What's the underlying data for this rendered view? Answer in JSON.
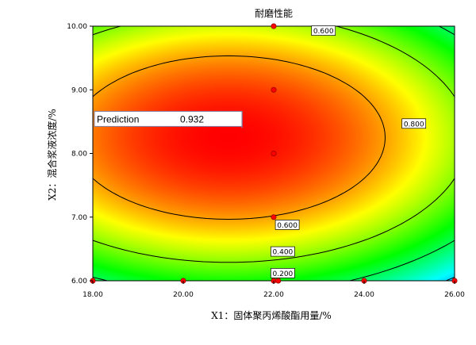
{
  "chart_data": {
    "type": "heatmap",
    "subtype": "contour",
    "title": "耐磨性能",
    "xlabel": "X1：固体聚丙烯酸酯用量/%",
    "ylabel": "X2：混合浆液浓度/%",
    "xlim": [
      18.0,
      26.0
    ],
    "ylim": [
      6.0,
      10.0
    ],
    "xticks": [
      "18.00",
      "20.00",
      "22.00",
      "24.00",
      "26.00"
    ],
    "yticks": [
      "6.00",
      "7.00",
      "8.00",
      "9.00",
      "10.00"
    ],
    "surface": {
      "center": [
        21.0,
        8.25
      ],
      "max": 0.95,
      "ax": 0.0125,
      "ay": 0.091
    },
    "contours": [
      {
        "level": 0.2,
        "label": "0.200",
        "label_at": [
          22.2,
          6.12
        ]
      },
      {
        "level": 0.4,
        "label": "0.400",
        "label_at": [
          22.2,
          6.46
        ]
      },
      {
        "level": 0.6,
        "label": "0.600",
        "label_at": [
          22.3,
          6.88
        ]
      },
      {
        "level": 0.6,
        "label": "0.600",
        "label_at": [
          23.1,
          9.93
        ]
      },
      {
        "level": 0.8,
        "label": "0.800",
        "label_at": [
          25.1,
          8.47
        ]
      }
    ],
    "points": [
      {
        "x": 18.0,
        "y": 6.0
      },
      {
        "x": 20.0,
        "y": 6.0
      },
      {
        "x": 22.0,
        "y": 6.0
      },
      {
        "x": 22.1,
        "y": 6.0
      },
      {
        "x": 24.0,
        "y": 6.0
      },
      {
        "x": 26.0,
        "y": 6.0
      },
      {
        "x": 22.0,
        "y": 7.0
      },
      {
        "x": 22.0,
        "y": 8.0
      },
      {
        "x": 22.0,
        "y": 9.0
      },
      {
        "x": 22.0,
        "y": 10.0
      }
    ],
    "prediction": {
      "label": "Prediction",
      "value": "0.932",
      "x": 21.3,
      "y": 8.4
    },
    "colors": {
      "low": "#0000ff",
      "mid_low": "#00ffff",
      "mid": "#00ff00",
      "mid_high": "#ffff00",
      "high": "#ff0000",
      "point": "#ff0000",
      "contour": "#000000"
    }
  }
}
